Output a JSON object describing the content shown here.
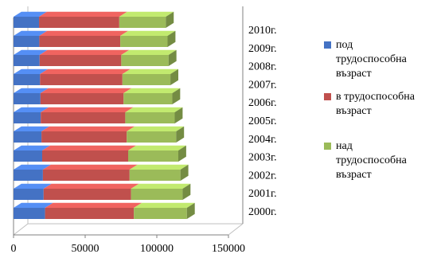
{
  "chart_data": {
    "type": "bar",
    "orientation": "horizontal",
    "stacked": true,
    "style": "3d",
    "categories": [
      "2000г.",
      "2001г.",
      "2002г.",
      "2003г.",
      "2004г.",
      "2005г.",
      "2006г.",
      "2007г.",
      "2008г.",
      "2009г.",
      "2010г."
    ],
    "series": [
      {
        "name": "под трудоспособна възраст",
        "color": "#4472C4",
        "values": [
          22000,
          21000,
          20500,
          20000,
          19500,
          19000,
          18800,
          18500,
          18200,
          18000,
          17800
        ]
      },
      {
        "name": "в трудоспособна възраст",
        "color": "#C0504D",
        "values": [
          62000,
          61000,
          60500,
          60000,
          59500,
          59000,
          58000,
          57500,
          57000,
          56500,
          56000
        ]
      },
      {
        "name": "над трудоспособна възраст",
        "color": "#9BBB59",
        "values": [
          37000,
          36000,
          35500,
          35000,
          34500,
          34500,
          34000,
          33500,
          33000,
          33000,
          32500
        ]
      }
    ],
    "xlim": [
      0,
      150000
    ],
    "xticks": [
      "0",
      "50000",
      "100000",
      "150000"
    ],
    "xtick_values": [
      0,
      50000,
      100000,
      150000
    ],
    "legend_position": "right",
    "grid": false,
    "title": "",
    "xlabel": "",
    "ylabel": ""
  }
}
